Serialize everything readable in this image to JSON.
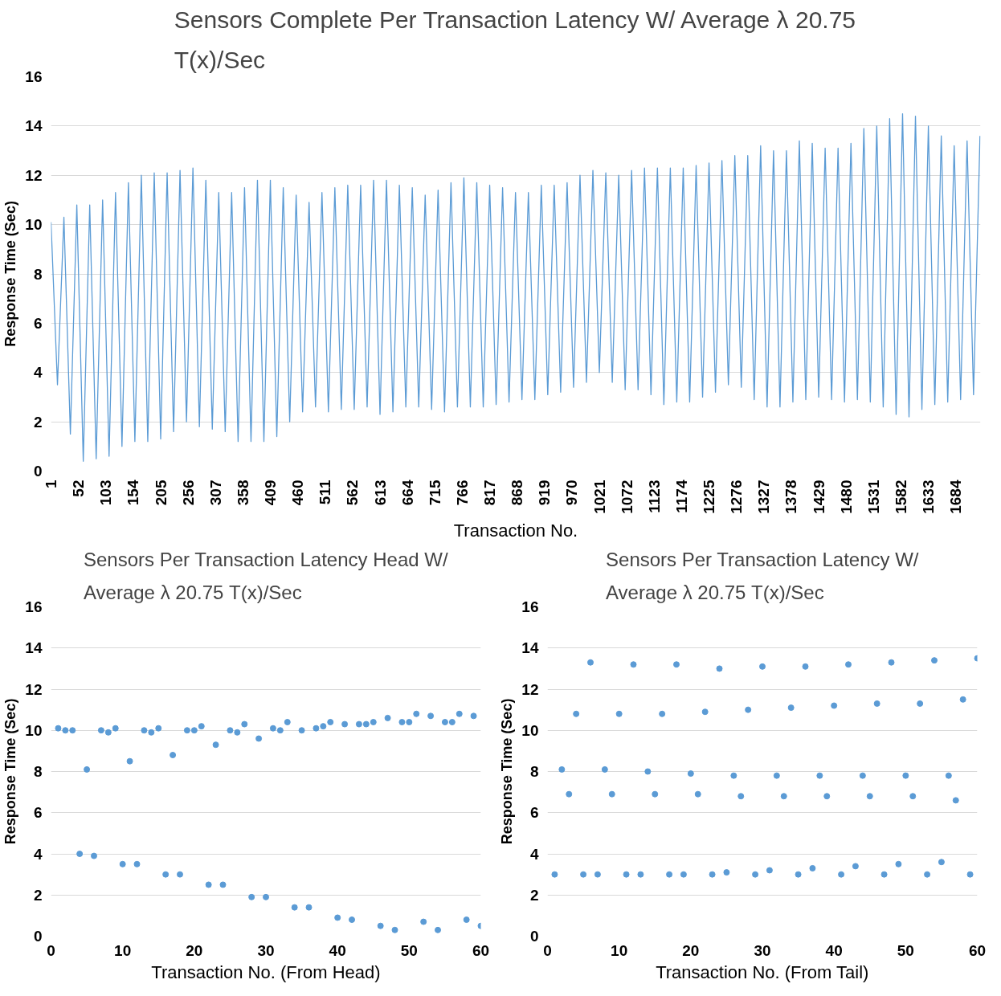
{
  "chart_data": [
    {
      "type": "line",
      "title": "Sensors Complete Per Transaction Latency W/ Average λ 20.75 T(x)/Sec",
      "xlabel": "Transaction No.",
      "ylabel": "Response Time (Sec)",
      "color": "#5b9bd5",
      "grid": "y",
      "xlim": [
        1,
        1730
      ],
      "ylim": [
        0,
        16
      ],
      "yticks": [
        0,
        2,
        4,
        6,
        8,
        10,
        12,
        14,
        16
      ],
      "xticks": [
        1,
        52,
        103,
        154,
        205,
        256,
        307,
        358,
        409,
        460,
        511,
        562,
        613,
        664,
        715,
        766,
        817,
        868,
        919,
        970,
        1021,
        1072,
        1123,
        1174,
        1225,
        1276,
        1327,
        1378,
        1429,
        1480,
        1531,
        1582,
        1633,
        1684
      ],
      "x": [
        1,
        13,
        25,
        37,
        49,
        61,
        73,
        85,
        97,
        109,
        121,
        133,
        145,
        157,
        169,
        181,
        193,
        205,
        217,
        229,
        241,
        253,
        265,
        277,
        289,
        301,
        313,
        325,
        337,
        349,
        361,
        373,
        385,
        397,
        409,
        421,
        433,
        445,
        457,
        469,
        481,
        493,
        505,
        517,
        529,
        541,
        553,
        565,
        577,
        589,
        601,
        613,
        625,
        637,
        649,
        661,
        673,
        685,
        697,
        709,
        721,
        733,
        745,
        757,
        769,
        781,
        793,
        805,
        817,
        829,
        841,
        853,
        865,
        877,
        889,
        901,
        913,
        925,
        937,
        949,
        961,
        973,
        985,
        997,
        1009,
        1021,
        1033,
        1045,
        1057,
        1069,
        1081,
        1093,
        1105,
        1117,
        1129,
        1141,
        1153,
        1165,
        1177,
        1189,
        1201,
        1213,
        1225,
        1237,
        1249,
        1261,
        1273,
        1285,
        1297,
        1309,
        1321,
        1333,
        1345,
        1357,
        1369,
        1381,
        1393,
        1405,
        1417,
        1429,
        1441,
        1453,
        1465,
        1477,
        1489,
        1501,
        1513,
        1525,
        1537,
        1549,
        1561,
        1573,
        1585,
        1597,
        1609,
        1621,
        1633,
        1645,
        1657,
        1669,
        1681,
        1693,
        1705,
        1717,
        1729
      ],
      "values": [
        10.1,
        3.5,
        10.3,
        1.5,
        10.8,
        0.4,
        10.8,
        0.5,
        11.0,
        0.6,
        11.3,
        1.0,
        11.7,
        1.2,
        12.0,
        1.2,
        12.1,
        1.3,
        12.1,
        1.6,
        12.2,
        2.0,
        12.3,
        1.8,
        11.8,
        1.7,
        11.3,
        1.6,
        11.3,
        1.2,
        11.5,
        1.2,
        11.8,
        1.2,
        11.8,
        1.4,
        11.5,
        2.0,
        11.2,
        2.4,
        10.9,
        2.6,
        11.3,
        2.4,
        11.5,
        2.5,
        11.6,
        2.5,
        11.6,
        2.6,
        11.8,
        2.3,
        11.8,
        2.4,
        11.6,
        2.6,
        11.5,
        2.6,
        11.2,
        2.5,
        11.4,
        2.4,
        11.7,
        2.6,
        11.9,
        2.6,
        11.7,
        2.6,
        11.6,
        2.7,
        11.5,
        2.8,
        11.3,
        2.9,
        11.3,
        2.9,
        11.6,
        3.1,
        11.6,
        3.2,
        11.7,
        3.4,
        12.0,
        3.6,
        12.2,
        4.0,
        12.1,
        3.6,
        12.0,
        3.3,
        12.2,
        3.3,
        12.3,
        3.1,
        12.3,
        2.7,
        12.3,
        2.8,
        12.3,
        2.8,
        12.4,
        3.0,
        12.5,
        3.2,
        12.6,
        3.5,
        12.8,
        3.4,
        12.8,
        2.9,
        13.2,
        2.6,
        13.0,
        2.6,
        13.0,
        2.8,
        13.4,
        2.9,
        13.3,
        3.0,
        13.1,
        2.9,
        13.1,
        2.8,
        13.3,
        2.9,
        13.9,
        2.8,
        14.0,
        2.6,
        14.3,
        2.3,
        14.5,
        2.2,
        14.4,
        2.5,
        14.0,
        2.7,
        13.6,
        2.8,
        13.2,
        2.9,
        13.4,
        3.1,
        13.6
      ]
    },
    {
      "type": "scatter",
      "title": "Sensors Per Transaction Latency Head W/ Average λ 20.75 T(x)/Sec",
      "xlabel": "Transaction No. (From Head)",
      "ylabel": "Response Time (Sec)",
      "color": "#5b9bd5",
      "grid": "y",
      "marker": "circle",
      "xlim": [
        0,
        60
      ],
      "ylim": [
        0,
        16
      ],
      "xticks": [
        0,
        10,
        20,
        30,
        40,
        50,
        60
      ],
      "yticks": [
        0,
        2,
        4,
        6,
        8,
        10,
        12,
        14,
        16
      ],
      "x": [
        1,
        2,
        3,
        4,
        5,
        6,
        7,
        8,
        9,
        10,
        11,
        12,
        13,
        14,
        15,
        16,
        17,
        18,
        19,
        20,
        21,
        22,
        23,
        24,
        25,
        26,
        27,
        28,
        29,
        30,
        31,
        32,
        33,
        34,
        35,
        36,
        37,
        38,
        39,
        40,
        41,
        42,
        43,
        44,
        45,
        46,
        47,
        48,
        49,
        50,
        51,
        52,
        53,
        54,
        55,
        56,
        57,
        58,
        59,
        60
      ],
      "values": [
        10.1,
        10.0,
        10.0,
        4.0,
        8.1,
        3.9,
        10.0,
        9.9,
        10.1,
        3.5,
        8.5,
        3.5,
        10.0,
        9.9,
        10.1,
        3.0,
        8.8,
        3.0,
        10.0,
        10.0,
        10.2,
        2.5,
        9.3,
        2.5,
        10.0,
        9.9,
        10.3,
        1.9,
        9.6,
        1.9,
        10.1,
        10.0,
        10.4,
        1.4,
        10.0,
        1.4,
        10.1,
        10.2,
        10.4,
        0.9,
        10.3,
        0.8,
        10.3,
        10.3,
        10.4,
        0.5,
        10.6,
        0.3,
        10.4,
        10.4,
        10.8,
        0.7,
        10.7,
        0.3,
        10.4,
        10.4,
        10.8,
        0.8,
        10.7,
        0.5
      ]
    },
    {
      "type": "scatter",
      "title": "Sensors Per Transaction Latency W/ Average λ 20.75 T(x)/Sec",
      "xlabel": "Transaction No. (From Tail)",
      "ylabel": "Response Time (Sec)",
      "color": "#5b9bd5",
      "grid": "y",
      "marker": "circle",
      "xlim": [
        0,
        60
      ],
      "ylim": [
        0,
        16
      ],
      "xticks": [
        0,
        10,
        20,
        30,
        40,
        50,
        60
      ],
      "yticks": [
        0,
        2,
        4,
        6,
        8,
        10,
        12,
        14,
        16
      ],
      "x": [
        1,
        2,
        3,
        4,
        5,
        6,
        7,
        8,
        9,
        10,
        11,
        12,
        13,
        14,
        15,
        16,
        17,
        18,
        19,
        20,
        21,
        22,
        23,
        24,
        25,
        26,
        27,
        28,
        29,
        30,
        31,
        32,
        33,
        34,
        35,
        36,
        37,
        38,
        39,
        40,
        41,
        42,
        43,
        44,
        45,
        46,
        47,
        48,
        49,
        50,
        51,
        52,
        53,
        54,
        55,
        56,
        57,
        58,
        59,
        60
      ],
      "values": [
        3.0,
        8.1,
        6.9,
        10.8,
        3.0,
        13.3,
        3.0,
        8.1,
        6.9,
        10.8,
        3.0,
        13.2,
        3.0,
        8.0,
        6.9,
        10.8,
        3.0,
        13.2,
        3.0,
        7.9,
        6.9,
        10.9,
        3.0,
        13.0,
        3.1,
        7.8,
        6.8,
        11.0,
        3.0,
        13.1,
        3.2,
        7.8,
        6.8,
        11.1,
        3.0,
        13.1,
        3.3,
        7.8,
        6.8,
        11.2,
        3.0,
        13.2,
        3.4,
        7.8,
        6.8,
        11.3,
        3.0,
        13.3,
        3.5,
        7.8,
        6.8,
        11.3,
        3.0,
        13.4,
        3.6,
        7.8,
        6.6,
        11.5,
        3.0,
        13.5
      ]
    }
  ]
}
